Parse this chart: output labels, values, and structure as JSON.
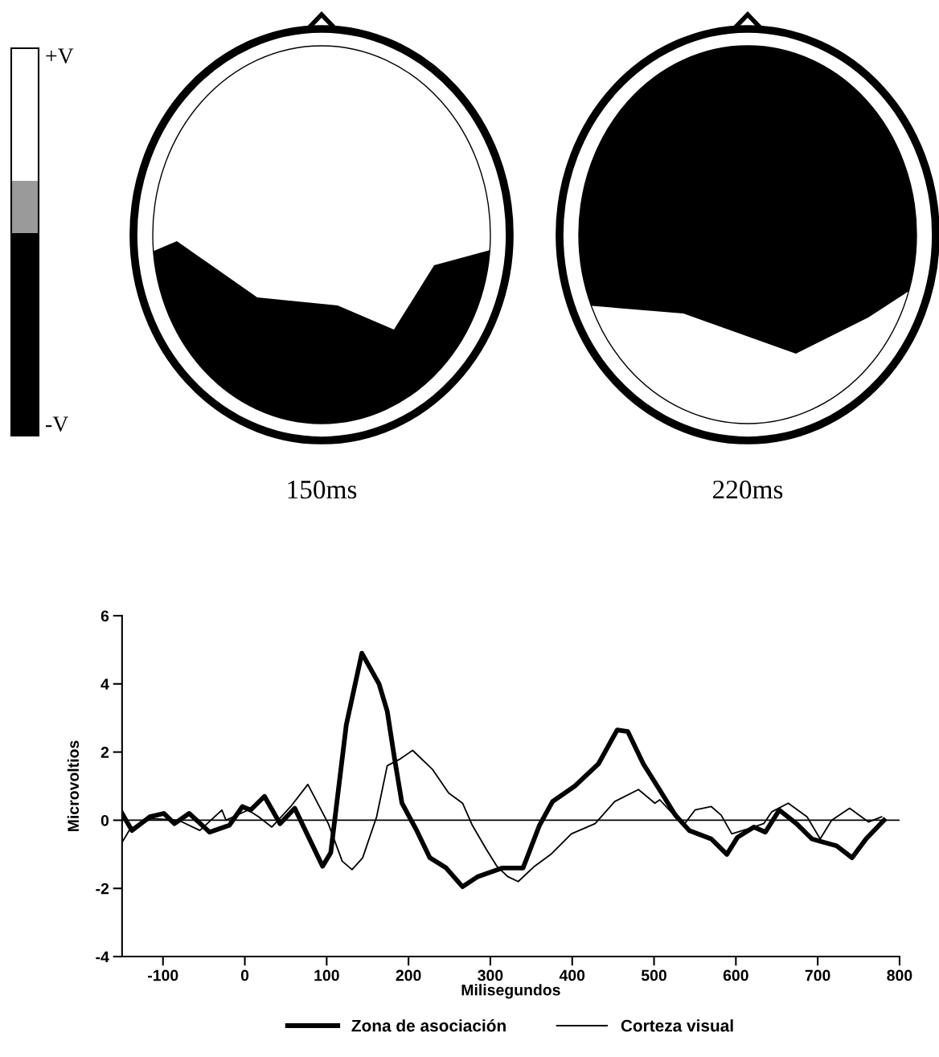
{
  "chart_data": {
    "type": "line",
    "xlabel": "Milisegundos",
    "ylabel": "Microvoltios",
    "xlim": [
      -150,
      800
    ],
    "xticks": [
      -100,
      0,
      100,
      200,
      300,
      400,
      500,
      600,
      700,
      800
    ],
    "ylim": [
      -4,
      6
    ],
    "yticks": [
      -4,
      -2,
      0,
      2,
      4,
      6
    ],
    "ref_lines": [
      {
        "axis": "y",
        "value": 0,
        "color": "#000000",
        "line_style": "solid"
      }
    ],
    "legend": "bottom",
    "grid": false,
    "marker": "none",
    "annotations": [
      "+V",
      "-V",
      "150ms",
      "220ms"
    ],
    "series": [
      {
        "name": "Zona de asociación",
        "color": "#000000",
        "line_style": "solid",
        "x": [
          -150,
          -138,
          -116,
          -99,
          -86,
          -68,
          -43,
          -19,
          -3,
          7,
          24,
          43,
          61,
          82,
          95,
          105,
          124,
          143,
          164,
          174,
          183,
          192,
          210,
          226,
          246,
          266,
          285,
          315,
          340,
          360,
          376,
          403,
          432,
          455,
          468,
          487,
          504,
          526,
          543,
          570,
          589,
          602,
          622,
          636,
          653,
          674,
          693,
          723,
          742,
          759,
          781
        ],
        "values": [
          0.2,
          -0.3,
          0.1,
          0.2,
          -0.1,
          0.2,
          -0.35,
          -0.15,
          0.4,
          0.3,
          0.7,
          -0.1,
          0.35,
          -0.7,
          -1.35,
          -0.95,
          2.8,
          4.9,
          4.0,
          3.2,
          1.8,
          0.5,
          -0.3,
          -1.1,
          -1.4,
          -1.95,
          -1.65,
          -1.4,
          -1.4,
          -0.15,
          0.55,
          1.0,
          1.65,
          2.65,
          2.6,
          1.65,
          1.0,
          0.15,
          -0.3,
          -0.55,
          -1.0,
          -0.5,
          -0.2,
          -0.35,
          0.3,
          -0.1,
          -0.55,
          -0.75,
          -1.1,
          -0.55,
          0.0
        ]
      },
      {
        "name": "Corteza visual",
        "color": "#000000",
        "line_style": "solid",
        "x": [
          -150,
          -140,
          -114,
          -81,
          -55,
          -28,
          -23,
          4,
          17,
          33,
          56,
          77,
          102,
          119,
          131,
          144,
          161,
          174,
          190,
          205,
          229,
          249,
          266,
          278,
          295,
          308,
          321,
          334,
          354,
          374,
          399,
          428,
          452,
          481,
          501,
          507,
          536,
          550,
          570,
          582,
          595,
          615,
          634,
          644,
          664,
          687,
          703,
          717,
          739,
          762,
          778
        ],
        "values": [
          -0.65,
          -0.25,
          0.05,
          0.0,
          -0.3,
          0.3,
          0.0,
          0.3,
          0.1,
          -0.2,
          0.4,
          1.05,
          -0.1,
          -1.2,
          -1.45,
          -1.1,
          0.1,
          1.6,
          1.8,
          2.05,
          1.5,
          0.8,
          0.5,
          -0.15,
          -0.85,
          -1.35,
          -1.65,
          -1.8,
          -1.35,
          -1.0,
          -0.4,
          -0.1,
          0.55,
          0.9,
          0.5,
          0.6,
          -0.15,
          0.3,
          0.4,
          0.15,
          -0.4,
          -0.25,
          -0.1,
          0.25,
          0.5,
          0.1,
          -0.55,
          0.0,
          0.35,
          -0.05,
          0.1
        ]
      }
    ]
  }
}
